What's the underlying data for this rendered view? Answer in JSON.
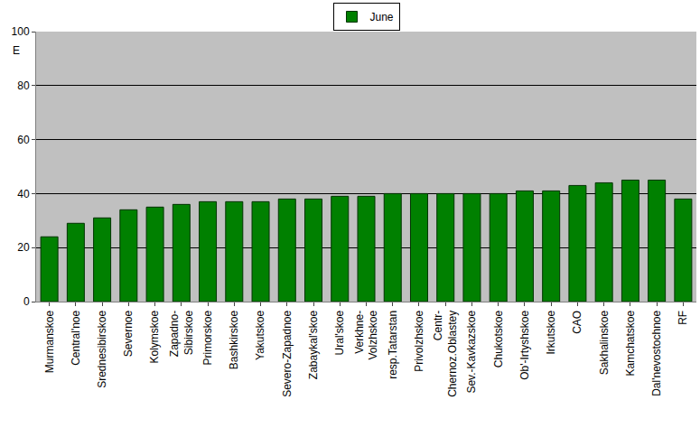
{
  "chart_data": {
    "type": "bar",
    "y_label": "E",
    "categories": [
      "Murmanskoe",
      "Central'noe",
      "Srednesibirskoe",
      "Severnoe",
      "Kolymskoe",
      "Zapadno-\nSibirskoe",
      "Primorskoe",
      "Bashkirskoe",
      "Yakutskoe",
      "Severo-Zapadnoe",
      "Zabaykal'skoe",
      "Ural'skoe",
      "Verkhne-\nVolzhskoe",
      "resp.Tatarstan",
      "Privolzhskoe",
      "Centr-\nChernoz.Oblastey",
      "Sev.-Kavkazskoe",
      "Chukotskoe",
      "Ob'-Irtyshskoe",
      "Irkutskoe",
      "CAO",
      "Sakhalinskoe",
      "Kamchatskoe",
      "Dal'nevostochnoe",
      "RF"
    ],
    "series": [
      {
        "name": "June",
        "color": "#008000",
        "values": [
          24,
          29,
          31,
          34,
          35,
          36,
          37,
          37,
          37,
          38,
          38,
          39,
          39,
          40,
          40,
          40,
          40,
          40,
          41,
          41,
          43,
          44,
          45,
          45,
          38
        ]
      }
    ],
    "ylim": [
      0,
      100
    ],
    "yticks": [
      0,
      20,
      40,
      60,
      80,
      100
    ],
    "grid": true,
    "legend": "top"
  }
}
